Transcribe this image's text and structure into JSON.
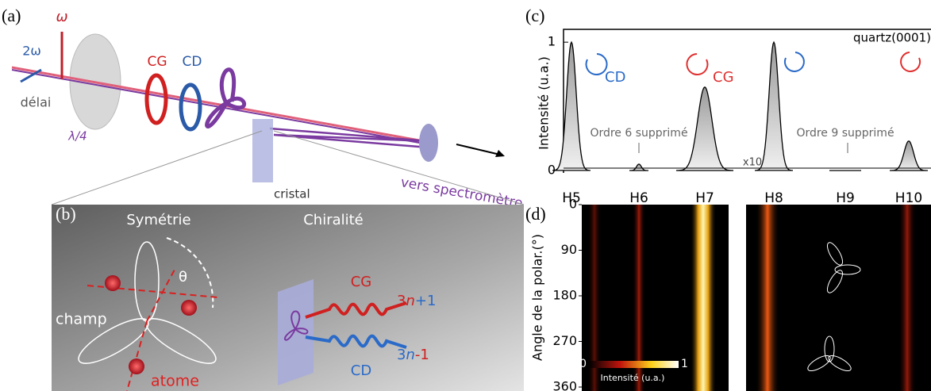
{
  "panel_a": {
    "label": "(a)",
    "omega": "ω",
    "two_omega": "2ω",
    "cg": "CG",
    "cd": "CD",
    "delay": "délai",
    "quarter_wave": "λ/4",
    "crystal": "cristal",
    "to_spectrometer": "vers spectromètre"
  },
  "panel_b": {
    "label": "(b)",
    "symmetry": "Symétrie",
    "chirality": "Chiralité",
    "theta": "θ",
    "field": "champ",
    "atom": "atome",
    "cg": "CG",
    "cd": "CD",
    "plus": [
      "3",
      "n",
      "+1"
    ],
    "minus": [
      "3",
      "n",
      "-1"
    ]
  },
  "chart_data": [
    {
      "type": "spectrum",
      "label": "(c)",
      "ylabel": "Intensité (u.a.)",
      "categories": [
        "H5",
        "H6",
        "H7",
        "H8",
        "H9",
        "H10"
      ],
      "values": [
        1,
        0.05,
        0.65,
        1,
        0,
        0.23
      ],
      "ylim": [
        0,
        1.1
      ],
      "yticks": [
        0,
        1
      ],
      "annotations": {
        "cd": "CD",
        "cg": "CG",
        "sample": "quartz(0001)",
        "order6": "Ordre 6 supprimé",
        "order9": "Ordre 9 supprimé",
        "scale": "x10"
      }
    },
    {
      "type": "heatmap",
      "label": "(d)",
      "ylabel": "Angle de la polar.(°)",
      "ylim": [
        0,
        360
      ],
      "yticks": [
        0,
        90,
        180,
        270,
        360
      ],
      "colorbar": {
        "ticks": [
          0,
          1
        ],
        "label": "Intensité (u.a.)"
      }
    }
  ]
}
